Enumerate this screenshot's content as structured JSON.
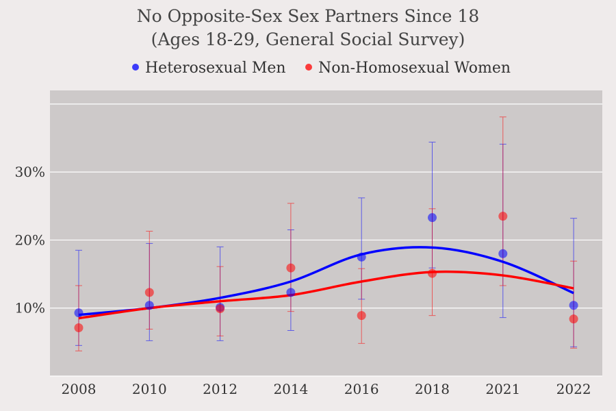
{
  "chart_data": {
    "type": "scatter",
    "title": "No Opposite-Sex Sex Partners Since 18",
    "subtitle": "(Ages 18-29, General Social Survey)",
    "xlabel": "",
    "ylabel": "",
    "categories": [
      "2008",
      "2010",
      "2012",
      "2014",
      "2016",
      "2018",
      "2021",
      "2022"
    ],
    "yticks": [
      10,
      20,
      30
    ],
    "ytick_labels": [
      "10%",
      "20%",
      "30%"
    ],
    "ylim": [
      0,
      42
    ],
    "grid": true,
    "legend": "top",
    "series": [
      {
        "name": "Heterosexual Men",
        "color": "#0000ff",
        "values": [
          9.3,
          10.4,
          10.1,
          12.3,
          17.5,
          23.3,
          18.0,
          10.4
        ],
        "lower": [
          4.5,
          5.2,
          5.2,
          6.7,
          11.3,
          15.9,
          8.6,
          4.3
        ],
        "upper": [
          18.5,
          19.5,
          19.0,
          21.5,
          26.2,
          34.4,
          34.1,
          23.2
        ],
        "trend": [
          9.0,
          10.0,
          11.5,
          13.9,
          17.9,
          18.9,
          16.8,
          12.2
        ]
      },
      {
        "name": "Non-Homosexual Women",
        "color": "#ff0000",
        "values": [
          7.1,
          12.3,
          9.9,
          15.9,
          8.9,
          15.1,
          23.5,
          8.4
        ],
        "lower": [
          3.7,
          6.9,
          5.9,
          9.5,
          4.8,
          8.9,
          13.3,
          4.1
        ],
        "upper": [
          13.3,
          21.3,
          16.1,
          25.4,
          15.8,
          24.6,
          38.1,
          16.9
        ],
        "trend": [
          8.5,
          10.0,
          11.0,
          11.9,
          13.9,
          15.3,
          14.8,
          12.9
        ]
      }
    ]
  }
}
